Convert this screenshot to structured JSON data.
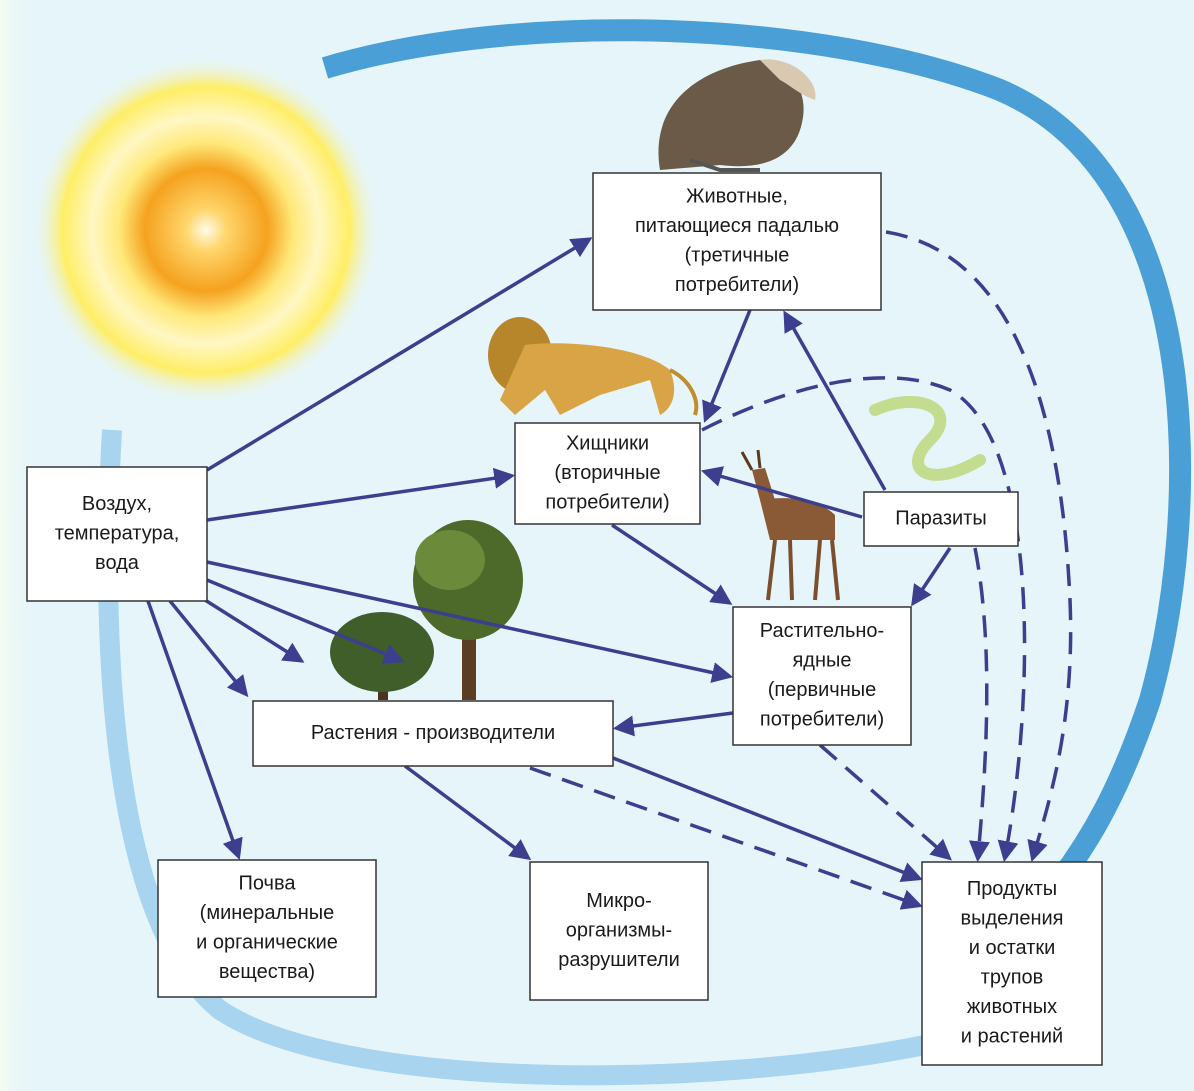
{
  "nodes": [
    {
      "lines": [
        "Животные,",
        "питающиеся падалью",
        "(третичные",
        "потребители)"
      ]
    },
    {
      "lines": [
        "Хищники",
        "(вторичные",
        "потребители)"
      ]
    },
    {
      "lines": [
        "Паразиты"
      ]
    },
    {
      "lines": [
        "Воздух,",
        "температура,",
        "вода"
      ]
    },
    {
      "lines": [
        "Растительно-",
        "ядные",
        "(первичные",
        "потребители)"
      ]
    },
    {
      "lines": [
        "Растения - производители"
      ]
    },
    {
      "lines": [
        "Почва",
        "(минеральные",
        "и органические",
        "вещества)"
      ]
    },
    {
      "lines": [
        "Микро-",
        "организмы-",
        "разрушители"
      ]
    },
    {
      "lines": [
        "Продукты",
        "выделения",
        "и остатки",
        "трупов",
        "животных",
        "и растений"
      ]
    }
  ]
}
